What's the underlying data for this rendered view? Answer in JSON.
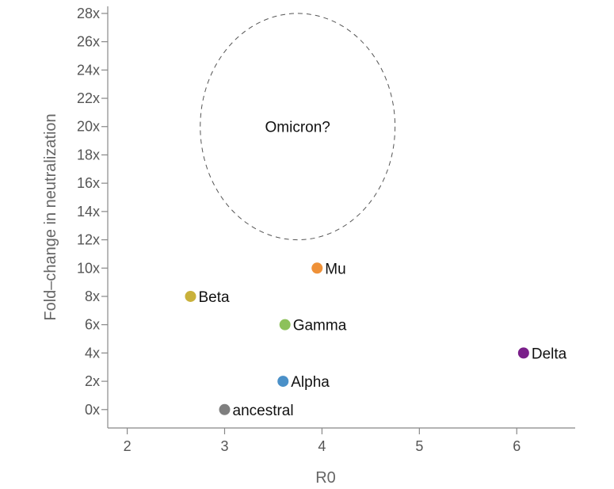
{
  "chart_data": {
    "type": "scatter",
    "xlabel": "R0",
    "ylabel": "Fold–change in neutralization",
    "xlim": [
      1.8,
      6.6
    ],
    "ylim": [
      -1.3,
      28.5
    ],
    "x_ticks": [
      2,
      3,
      4,
      5,
      6
    ],
    "x_tick_labels": [
      "2",
      "3",
      "4",
      "5",
      "6"
    ],
    "y_ticks": [
      0,
      2,
      4,
      6,
      8,
      10,
      12,
      14,
      16,
      18,
      20,
      22,
      24,
      26,
      28
    ],
    "y_tick_labels": [
      "0x",
      "2x",
      "4x",
      "6x",
      "8x",
      "10x",
      "12x",
      "14x",
      "16x",
      "18x",
      "20x",
      "22x",
      "24x",
      "26x",
      "28x"
    ],
    "grid": false,
    "points": [
      {
        "label": "ancestral",
        "x": 3.0,
        "y": 0,
        "color": "#7f7f7f"
      },
      {
        "label": "Alpha",
        "x": 3.6,
        "y": 2,
        "color": "#4a90c8"
      },
      {
        "label": "Gamma",
        "x": 3.62,
        "y": 6,
        "color": "#8dc15b"
      },
      {
        "label": "Beta",
        "x": 2.65,
        "y": 8,
        "color": "#c9b13b"
      },
      {
        "label": "Mu",
        "x": 3.95,
        "y": 10,
        "color": "#ef9138"
      },
      {
        "label": "Delta",
        "x": 6.07,
        "y": 4,
        "color": "#7a1f8a"
      }
    ],
    "annotation": {
      "text": "Omicron?",
      "shape": "dashed-ellipse",
      "center_x": 3.75,
      "center_y": 20,
      "x_range": [
        2.75,
        4.75
      ],
      "y_range": [
        12,
        28
      ]
    }
  }
}
